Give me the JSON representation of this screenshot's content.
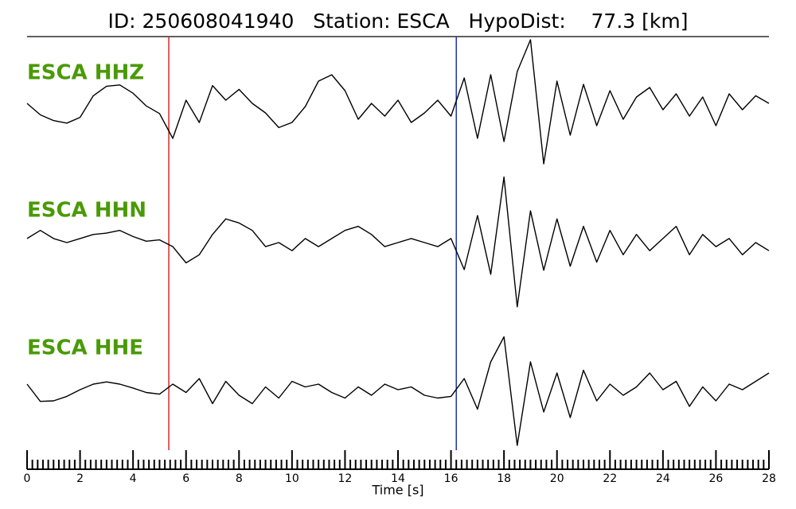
{
  "chart_data": {
    "type": "line",
    "title": "ID: 250608041940   Station: ESCA   HypoDist:    77.3 [km]",
    "xlabel": "Time [s]",
    "xlim": [
      0,
      28
    ],
    "xticks": [
      0,
      2,
      4,
      6,
      8,
      10,
      12,
      14,
      16,
      18,
      20,
      22,
      24,
      26,
      28
    ],
    "xminorticks": [
      0.2,
      0.4,
      0.6,
      0.8,
      1,
      1.2,
      1.4,
      1.6,
      1.8,
      2.2,
      2.4,
      2.6,
      2.8,
      3,
      3.2,
      3.4,
      3.6,
      3.8,
      4.2,
      4.4,
      4.6,
      4.8,
      5,
      5.2,
      5.4,
      5.6,
      5.8,
      6.2,
      6.4,
      6.6,
      6.8,
      7,
      7.2,
      7.4,
      7.6,
      7.8,
      8.2,
      8.4,
      8.6,
      8.8,
      9,
      9.2,
      9.4,
      9.6,
      9.8,
      10.2,
      10.4,
      10.6,
      10.8,
      11,
      11.2,
      11.4,
      11.6,
      11.8,
      12.2,
      12.4,
      12.6,
      12.8,
      13,
      13.2,
      13.4,
      13.6,
      13.8,
      14.2,
      14.4,
      14.6,
      14.8,
      15,
      15.2,
      15.4,
      15.6,
      15.8,
      16.2,
      16.4,
      16.6,
      16.8,
      17,
      17.2,
      17.4,
      17.6,
      17.8,
      18.2,
      18.4,
      18.6,
      18.8,
      19,
      19.2,
      19.4,
      19.6,
      19.8,
      20.2,
      20.4,
      20.6,
      20.8,
      21,
      21.2,
      21.4,
      21.6,
      21.8,
      22.2,
      22.4,
      22.6,
      22.8,
      23,
      23.2,
      23.4,
      23.6,
      23.8,
      24.2,
      24.4,
      24.6,
      24.8,
      25,
      25.2,
      25.4,
      25.6,
      25.8,
      26.2,
      26.4,
      26.6,
      26.8,
      27,
      27.2,
      27.4,
      27.6,
      27.8
    ],
    "ylim": [
      -1,
      1
    ],
    "label_color": "#4a9a06",
    "markers": [
      {
        "x": 5.35,
        "color": "#d62728"
      },
      {
        "x": 16.2,
        "color": "#2233aa"
      }
    ],
    "x": [
      0,
      0.5,
      1,
      1.5,
      2,
      2.5,
      3,
      3.5,
      4,
      4.5,
      5,
      5.5,
      6,
      6.5,
      7,
      7.5,
      8,
      8.5,
      9,
      9.5,
      10,
      10.5,
      11,
      11.5,
      12,
      12.5,
      13,
      13.5,
      14,
      14.5,
      15,
      15.5,
      16,
      16.5,
      17,
      17.5,
      18,
      18.5,
      19,
      19.5,
      20,
      20.5,
      21,
      21.5,
      22,
      22.5,
      23,
      23.5,
      24,
      24.5,
      25,
      25.5,
      26,
      26.5,
      27,
      27.5,
      28
    ],
    "series": [
      {
        "name": "ESCA HHZ",
        "color": "#000000",
        "values": [
          0,
          -0.18,
          -0.27,
          -0.31,
          -0.22,
          0.12,
          0.27,
          0.29,
          0.16,
          -0.04,
          -0.16,
          -0.55,
          0.05,
          -0.3,
          0.28,
          0.05,
          0.22,
          0,
          -0.15,
          -0.38,
          -0.3,
          -0.05,
          0.35,
          0.45,
          0.2,
          -0.25,
          0,
          -0.2,
          0.05,
          -0.3,
          -0.15,
          0.05,
          -0.2,
          0.4,
          -0.55,
          0.45,
          -0.6,
          0.5,
          1.0,
          -0.95,
          0.35,
          -0.5,
          0.3,
          -0.35,
          0.2,
          -0.25,
          0.1,
          0.25,
          -0.1,
          0.15,
          -0.2,
          0.1,
          -0.35,
          0.15,
          -0.1,
          0.12,
          0
        ]
      },
      {
        "name": "ESCA HHN",
        "color": "#000000",
        "values": [
          0.06,
          0.18,
          0.06,
          0,
          0.06,
          0.12,
          0.14,
          0.18,
          0.09,
          0.02,
          0.04,
          -0.06,
          -0.3,
          -0.18,
          0.12,
          0.35,
          0.29,
          0.18,
          -0.06,
          0,
          -0.12,
          0.06,
          -0.06,
          0.06,
          0.18,
          0.24,
          0.12,
          -0.06,
          0,
          0.06,
          0,
          -0.06,
          0.06,
          -0.4,
          0.4,
          -0.47,
          0.97,
          -0.95,
          0.47,
          -0.41,
          0.35,
          -0.35,
          0.24,
          -0.29,
          0.18,
          -0.18,
          0.12,
          -0.12,
          0.06,
          0.24,
          -0.18,
          0.12,
          -0.06,
          0.06,
          -0.18,
          0,
          -0.12
        ]
      },
      {
        "name": "ESCA HHE",
        "color": "#000000",
        "values": [
          0.1,
          -0.21,
          -0.2,
          -0.12,
          0,
          0.1,
          0.14,
          0.1,
          0.03,
          -0.05,
          -0.08,
          0.1,
          -0.05,
          0.2,
          -0.25,
          0.15,
          -0.1,
          -0.25,
          0.05,
          -0.15,
          0.15,
          0.05,
          0.1,
          -0.05,
          -0.15,
          0.05,
          -0.1,
          0.1,
          0,
          0.05,
          -0.1,
          -0.15,
          -0.12,
          0.2,
          -0.35,
          0.5,
          0.95,
          -1.0,
          0.5,
          -0.4,
          0.3,
          -0.5,
          0.35,
          -0.2,
          0.1,
          -0.1,
          0.05,
          0.3,
          0,
          0.15,
          -0.3,
          0.05,
          -0.2,
          0.1,
          0,
          0.15,
          0.3
        ]
      }
    ]
  }
}
